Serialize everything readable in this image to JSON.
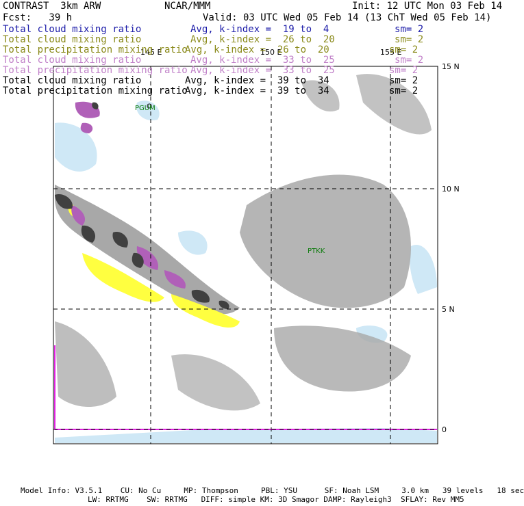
{
  "header": {
    "title_left": "CONTRAST  3km ARW",
    "title_center": "NCAR/MMM",
    "init": "Init: 12 UTC Mon 03 Feb 14",
    "fcst": "Fcst:   39 h",
    "valid": "Valid: 03 UTC Wed 05 Feb 14 (13 ChT Wed 05 Feb 14)"
  },
  "legend": [
    {
      "field": "Total cloud mixing ratio",
      "avg": "Avg, k-index =  19 to  4",
      "sm": "sm= 2",
      "color": "#1a1aa8"
    },
    {
      "field": "Total cloud mixing ratio",
      "avg": "Avg, k-index =  26 to  20",
      "sm": "sm= 2",
      "color": "#8a8a1a"
    },
    {
      "field": "Total precipitation mixing ratio",
      "avg": "Avg, k-index =  26 to  20",
      "sm": "sm= 2",
      "color": "#8a8a1a"
    },
    {
      "field": "Total cloud mixing ratio",
      "avg": "Avg, k-index =  33 to  25",
      "sm": "sm= 2",
      "color": "#c080c8"
    },
    {
      "field": "Total precipitation mixing ratio",
      "avg": "Avg, k-index =  33 to  25",
      "sm": "sm= 2",
      "color": "#c080c8"
    },
    {
      "field": "Total cloud mixing ratio",
      "avg": "Avg, k-index =  39 to  34",
      "sm": "sm= 2",
      "color": "#000000"
    },
    {
      "field": "Total precipitation mixing ratio",
      "avg": "Avg, k-index =  39 to  34",
      "sm": "sm= 2",
      "color": "#000000"
    }
  ],
  "map": {
    "lon_labels": [
      "145 E",
      "150 E",
      "155 E"
    ],
    "lat_labels": [
      "15 N",
      "10 N",
      "5 N",
      "0"
    ],
    "stations": [
      "PGUM",
      "PTKK"
    ],
    "colors": {
      "light_blue": "#cfe8f6",
      "gray": "#a8a8a8",
      "dark": "#404040",
      "purple": "#b060b8",
      "yellow": "#ffff40",
      "magenta": "#e020e0"
    }
  },
  "footer": {
    "line1": "Model Info: V3.5.1    CU: No Cu     MP: Thompson     PBL: YSU      SF: Noah LSM     3.0 km   39 levels   18 sec",
    "line2": "LW: RRTMG    SW: RRTMG   DIFF: simple KM: 3D Smagor DAMP: Rayleigh3  SFLAY: Rev MM5"
  }
}
